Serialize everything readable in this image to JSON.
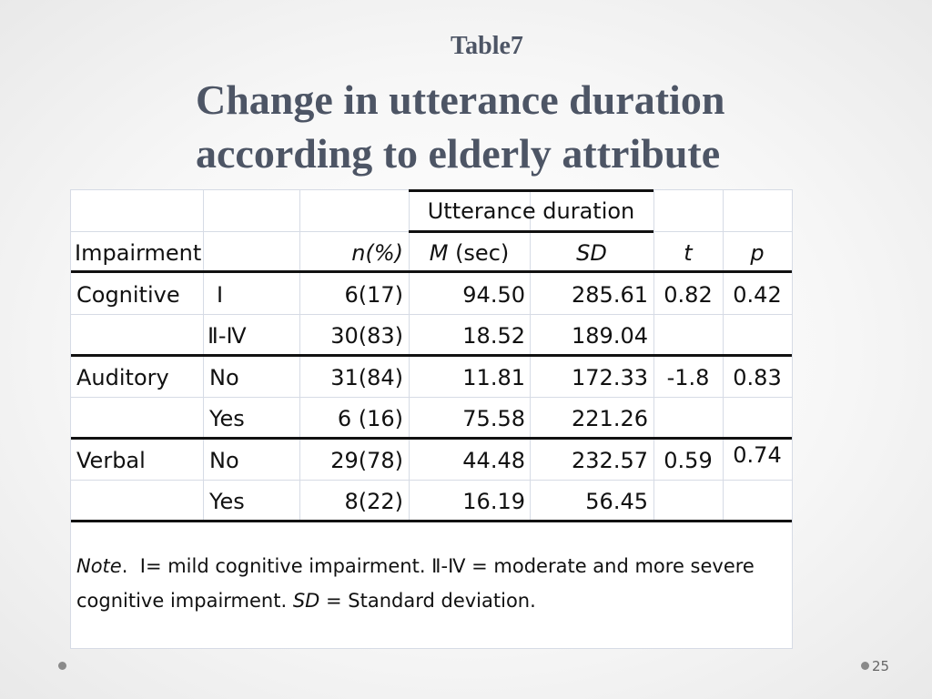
{
  "slide": {
    "label": "Table7",
    "title_line1": "Change in utterance duration",
    "title_line2": "according to elderly attribute",
    "page_number": "25"
  },
  "table": {
    "header": {
      "group": "Utterance duration",
      "impairment": "Impairment",
      "n": "n(%)",
      "m": "M",
      "m_unit": " (sec)",
      "sd": "SD",
      "t": "t",
      "p": "p"
    },
    "rows": [
      {
        "group": "Cognitive",
        "level": "Ⅰ",
        "n": "6(17)",
        "m": "94.50",
        "sd": "285.61",
        "t": "0.82",
        "p": "0.42"
      },
      {
        "group": "",
        "level": "Ⅱ-Ⅳ",
        "n": "30(83)",
        "m": "18.52",
        "sd": "189.04",
        "t": "",
        "p": ""
      },
      {
        "group": "Auditory",
        "level": "No",
        "n": "31(84)",
        "m": "11.81",
        "sd": "172.33",
        "t": "-1.8",
        "p": "0.83"
      },
      {
        "group": "",
        "level": "Yes",
        "n": "6 (16)",
        "m": "75.58",
        "sd": "221.26",
        "t": "",
        "p": ""
      },
      {
        "group": "Verbal",
        "level": "No",
        "n": "29(78)",
        "m": "44.48",
        "sd": "232.57",
        "t": "0.59",
        "p": "0.74"
      },
      {
        "group": "",
        "level": "Yes",
        "n": "8(22)",
        "m": "16.19",
        "sd": "56.45",
        "t": "",
        "p": ""
      }
    ]
  },
  "note": {
    "label": "Note",
    "sep": ".  ",
    "text1": "Ⅰ= mild cognitive impairment.  Ⅱ-Ⅳ = moderate and more severe cognitive impairment. ",
    "sd": "SD",
    "text2": " = Standard deviation."
  }
}
